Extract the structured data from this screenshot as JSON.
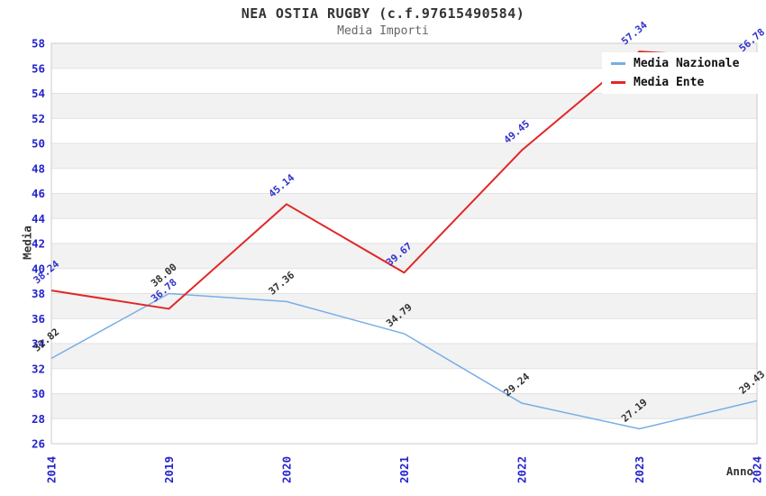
{
  "header": {
    "title": "NEA OSTIA RUGBY (c.f.97615490584)",
    "subtitle": "Media Importi"
  },
  "chart_data": {
    "type": "line",
    "title": "NEA OSTIA RUGBY (c.f.97615490584)",
    "subtitle": "Media Importi",
    "xlabel": "Anno",
    "ylabel": "Media",
    "categories": [
      "2014",
      "2019",
      "2020",
      "2021",
      "2022",
      "2023",
      "2024"
    ],
    "series": [
      {
        "name": "Media Nazionale",
        "color": "#77aee6",
        "label_color": "#333333",
        "values": [
          32.82,
          38.0,
          37.36,
          34.79,
          29.24,
          27.19,
          29.43
        ]
      },
      {
        "name": "Media Ente",
        "color": "#e02828",
        "label_color": "#3333cc",
        "values": [
          38.24,
          36.78,
          45.14,
          39.67,
          49.45,
          57.34,
          56.78
        ]
      }
    ],
    "ylim": [
      26,
      58
    ],
    "ytick_step": 2,
    "grid": "horizontal-bands",
    "legend_position": "top-right"
  },
  "style": {
    "axis_tick_color": "#2424cc",
    "band_color": "#f2f2f2",
    "grid_color": "#e2e2e2",
    "plot_border_color": "#cccccc",
    "title_color": "#333333",
    "subtitle_color": "#666666",
    "axis_title_color": "#333333",
    "legend_text_color": "#111111",
    "legend_bg": "#ffffff",
    "page_bg": "#ffffff"
  }
}
